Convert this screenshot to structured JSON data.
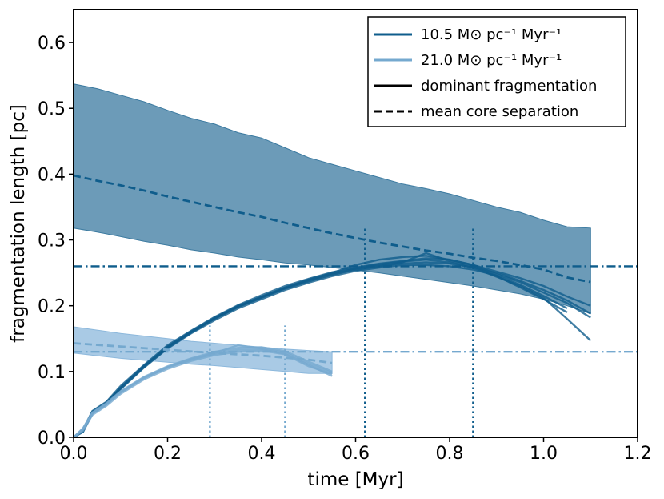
{
  "chart_data": {
    "type": "line",
    "xlabel": "time [Myr]",
    "ylabel": "fragmentation length [pc]",
    "xlim": [
      0.0,
      1.2
    ],
    "ylim": [
      0.0,
      0.65
    ],
    "xticks": [
      0.0,
      0.2,
      0.4,
      0.6,
      0.8,
      1.0,
      1.2
    ],
    "xtick_labels": [
      "0.0",
      "0.2",
      "0.4",
      "0.6",
      "0.8",
      "1.0",
      "1.2"
    ],
    "yticks": [
      0.0,
      0.1,
      0.2,
      0.3,
      0.4,
      0.5,
      0.6
    ],
    "ytick_labels": [
      "0.0",
      "0.1",
      "0.2",
      "0.3",
      "0.4",
      "0.5",
      "0.6"
    ],
    "colors": {
      "dark": "#0f5d8c",
      "light": "#75a9cf",
      "band_dark": "#3b7aa0",
      "band_light": "#8cb8dc"
    },
    "legend": {
      "location": "upper right",
      "entries": [
        {
          "label": "10.5 M⊙ pc⁻¹ Myr⁻¹",
          "style": "solid",
          "color": "#0f5d8c"
        },
        {
          "label": "21.0 M⊙ pc⁻¹ Myr⁻¹",
          "style": "solid",
          "color": "#75a9cf"
        },
        {
          "label": "dominant fragmentation",
          "style": "solid",
          "color": "#000000"
        },
        {
          "label": "mean core separation",
          "style": "dashed",
          "color": "#000000"
        }
      ]
    },
    "series": [
      {
        "name": "10.5 spread of core separation",
        "kind": "band",
        "color": "#3b7aa0",
        "x": [
          0.0,
          0.05,
          0.1,
          0.15,
          0.2,
          0.25,
          0.3,
          0.35,
          0.4,
          0.45,
          0.5,
          0.55,
          0.6,
          0.65,
          0.7,
          0.75,
          0.8,
          0.85,
          0.9,
          0.95,
          1.0,
          1.05,
          1.1
        ],
        "lower": [
          0.318,
          0.312,
          0.305,
          0.298,
          0.292,
          0.285,
          0.28,
          0.274,
          0.27,
          0.265,
          0.262,
          0.258,
          0.254,
          0.25,
          0.245,
          0.24,
          0.235,
          0.23,
          0.224,
          0.218,
          0.21,
          0.2,
          0.188
        ],
        "upper": [
          0.537,
          0.53,
          0.52,
          0.51,
          0.497,
          0.485,
          0.476,
          0.463,
          0.455,
          0.44,
          0.425,
          0.415,
          0.405,
          0.395,
          0.385,
          0.378,
          0.37,
          0.36,
          0.35,
          0.342,
          0.33,
          0.32,
          0.318
        ]
      },
      {
        "name": "10.5 mean core separation",
        "kind": "line",
        "style": "dashed",
        "color": "#0f5d8c",
        "x": [
          0.0,
          0.05,
          0.1,
          0.15,
          0.2,
          0.25,
          0.3,
          0.35,
          0.4,
          0.45,
          0.5,
          0.55,
          0.6,
          0.65,
          0.7,
          0.75,
          0.8,
          0.85,
          0.9,
          0.95,
          1.0,
          1.05,
          1.1
        ],
        "y": [
          0.398,
          0.39,
          0.383,
          0.375,
          0.366,
          0.358,
          0.35,
          0.342,
          0.335,
          0.326,
          0.318,
          0.31,
          0.303,
          0.296,
          0.29,
          0.284,
          0.279,
          0.273,
          0.268,
          0.262,
          0.255,
          0.243,
          0.236
        ]
      },
      {
        "name": "21.0 spread of core separation",
        "kind": "band",
        "color": "#8cb8dc",
        "x": [
          0.0,
          0.05,
          0.1,
          0.15,
          0.2,
          0.25,
          0.3,
          0.35,
          0.4,
          0.45,
          0.5,
          0.55
        ],
        "lower": [
          0.128,
          0.124,
          0.12,
          0.117,
          0.114,
          0.111,
          0.109,
          0.106,
          0.103,
          0.1,
          0.097,
          0.097
        ],
        "upper": [
          0.168,
          0.163,
          0.158,
          0.154,
          0.15,
          0.146,
          0.143,
          0.14,
          0.137,
          0.134,
          0.132,
          0.13
        ]
      },
      {
        "name": "21.0 mean core separation",
        "kind": "line",
        "style": "dashed",
        "color": "#75a9cf",
        "x": [
          0.0,
          0.1,
          0.2,
          0.3,
          0.4,
          0.5,
          0.55
        ],
        "y": [
          0.143,
          0.138,
          0.133,
          0.128,
          0.124,
          0.118,
          0.113
        ]
      },
      {
        "name": "10.5 dominant fragmentation (runs)",
        "kind": "multiline",
        "color": "#0f5d8c",
        "x": [
          0.0,
          0.02,
          0.04,
          0.07,
          0.1,
          0.15,
          0.2,
          0.25,
          0.3,
          0.35,
          0.4,
          0.45,
          0.5,
          0.55,
          0.6,
          0.65,
          0.7,
          0.75,
          0.8,
          0.85,
          0.9,
          0.95,
          1.0,
          1.05,
          1.1
        ],
        "runs": [
          [
            0.0,
            0.01,
            0.038,
            0.052,
            0.075,
            0.108,
            0.137,
            0.16,
            0.181,
            0.199,
            0.213,
            0.227,
            0.238,
            0.248,
            0.256,
            0.261,
            0.264,
            0.266,
            0.264,
            0.258,
            0.25,
            0.238,
            0.224,
            0.208,
            0.188
          ],
          [
            0.0,
            0.012,
            0.04,
            0.054,
            0.078,
            0.11,
            0.14,
            0.162,
            0.183,
            0.201,
            0.216,
            0.23,
            0.241,
            0.251,
            0.258,
            0.264,
            0.268,
            0.272,
            0.27,
            0.262,
            0.252,
            0.242,
            0.23,
            0.214,
            0.2
          ],
          [
            0.0,
            0.008,
            0.036,
            0.05,
            0.073,
            0.106,
            0.135,
            0.158,
            0.178,
            0.196,
            0.21,
            0.224,
            0.235,
            0.245,
            0.253,
            0.258,
            0.262,
            0.262,
            0.26,
            0.255,
            0.246,
            0.232,
            0.215,
            0.196
          ],
          [
            0.0,
            0.01,
            0.039,
            0.053,
            0.076,
            0.109,
            0.138,
            0.161,
            0.182,
            0.2,
            0.214,
            0.228,
            0.24,
            0.25,
            0.262,
            0.27,
            0.274,
            0.276,
            0.27,
            0.262,
            0.248,
            0.236,
            0.22,
            0.204,
            0.182
          ],
          [
            0.0,
            0.009,
            0.037,
            0.051,
            0.074,
            0.107,
            0.136,
            0.159,
            0.18,
            0.198,
            0.212,
            0.226,
            0.237,
            0.247,
            0.255,
            0.26,
            0.266,
            0.28,
            0.268,
            0.26,
            0.245,
            0.228,
            0.21,
            0.19
          ],
          [
            0.0,
            0.011,
            0.038,
            0.052,
            0.075,
            0.108,
            0.137,
            0.16,
            0.181,
            0.199,
            0.213,
            0.227,
            0.239,
            0.249,
            0.257,
            0.263,
            0.267,
            0.27,
            0.266,
            0.258,
            0.244,
            0.23,
            0.212,
            0.18,
            0.147
          ]
        ]
      },
      {
        "name": "21.0 dominant fragmentation (runs)",
        "kind": "multiline",
        "color": "#75a9cf",
        "x": [
          0.0,
          0.02,
          0.04,
          0.07,
          0.1,
          0.15,
          0.2,
          0.25,
          0.3,
          0.35,
          0.4,
          0.45,
          0.5,
          0.55
        ],
        "runs": [
          [
            0.0,
            0.012,
            0.036,
            0.05,
            0.068,
            0.09,
            0.106,
            0.118,
            0.127,
            0.133,
            0.134,
            0.127,
            0.11,
            0.093
          ],
          [
            0.0,
            0.014,
            0.038,
            0.052,
            0.07,
            0.092,
            0.108,
            0.12,
            0.13,
            0.136,
            0.137,
            0.131,
            0.115,
            0.1
          ],
          [
            0.0,
            0.01,
            0.034,
            0.048,
            0.066,
            0.088,
            0.104,
            0.116,
            0.125,
            0.13,
            0.132,
            0.126,
            0.108,
            0.096
          ],
          [
            0.0,
            0.013,
            0.037,
            0.051,
            0.069,
            0.091,
            0.107,
            0.119,
            0.128,
            0.14,
            0.135,
            0.129,
            0.112,
            0.098
          ]
        ]
      },
      {
        "name": "10.5 expected fragmentation length",
        "kind": "hline",
        "style": "dashdot",
        "color": "#0f5d8c",
        "y": 0.26
      },
      {
        "name": "21.0 expected fragmentation length",
        "kind": "hline",
        "style": "dashdot",
        "color": "#75a9cf",
        "y": 0.13
      },
      {
        "name": "10.5 marker times",
        "kind": "vlines",
        "style": "dotted",
        "color": "#0f5d8c",
        "x": [
          0.62,
          0.85
        ],
        "ymax": 0.32
      },
      {
        "name": "21.0 marker times",
        "kind": "vlines",
        "style": "dotted",
        "color": "#75a9cf",
        "x": [
          0.29,
          0.45
        ],
        "ymax": 0.17
      }
    ]
  }
}
